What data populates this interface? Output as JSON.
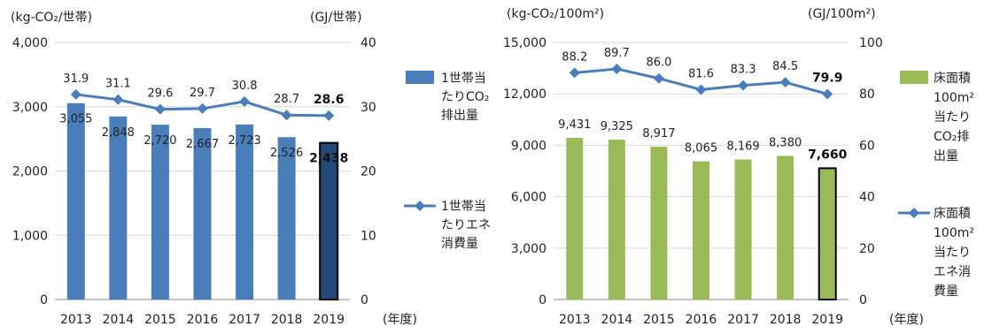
{
  "chart_data": [
    {
      "type": "bar",
      "left_unit": "(kg-CO₂/世帯)",
      "right_unit": "(GJ/世帯)",
      "x_unit": "(年度)",
      "categories": [
        "2013",
        "2014",
        "2015",
        "2016",
        "2017",
        "2018",
        "2019"
      ],
      "ylim": [
        0,
        4000
      ],
      "y_ticks": [
        "0",
        "1,000",
        "2,000",
        "3,000",
        "4,000"
      ],
      "y2lim": [
        0,
        40
      ],
      "y2_ticks": [
        "0",
        "10",
        "20",
        "30",
        "40"
      ],
      "grid": true,
      "legend_position": "right",
      "series": [
        {
          "name_lines": [
            "1世帯当",
            "たりCO₂",
            "排出量"
          ],
          "kind": "bar",
          "axis": "left",
          "color": "#4a7ebb",
          "highlight_color": "#254a7a",
          "values": [
            3055,
            2848,
            2720,
            2667,
            2723,
            2526,
            2438
          ],
          "labels": [
            "3,055",
            "2,848",
            "2,720",
            "2,667",
            "2,723",
            "2,526",
            "2,438"
          ]
        },
        {
          "name_lines": [
            "1世帯当",
            "たりエネ",
            "消費量"
          ],
          "kind": "line",
          "axis": "right",
          "color": "#4a7ebb",
          "values": [
            31.9,
            31.1,
            29.6,
            29.7,
            30.8,
            28.7,
            28.6
          ],
          "labels": [
            "31.9",
            "31.1",
            "29.6",
            "29.7",
            "30.8",
            "28.7",
            "28.6"
          ]
        }
      ]
    },
    {
      "type": "bar",
      "left_unit": "(kg-CO₂/100m²)",
      "right_unit": "(GJ/100m²)",
      "x_unit": "(年度)",
      "categories": [
        "2013",
        "2014",
        "2015",
        "2016",
        "2017",
        "2018",
        "2019"
      ],
      "ylim": [
        0,
        15000
      ],
      "y_ticks": [
        "0",
        "3,000",
        "6,000",
        "9,000",
        "12,000",
        "15,000"
      ],
      "y2lim": [
        0,
        100
      ],
      "y2_ticks": [
        "0",
        "20",
        "40",
        "60",
        "80",
        "100"
      ],
      "grid": true,
      "legend_position": "right",
      "series": [
        {
          "name_lines": [
            "床面積",
            "100m²",
            "当たり",
            "CO₂排",
            "出量"
          ],
          "kind": "bar",
          "axis": "left",
          "color": "#9bbb59",
          "highlight_color": "#9bbb59",
          "values": [
            9431,
            9325,
            8917,
            8065,
            8169,
            8380,
            7660
          ],
          "labels": [
            "9,431",
            "9,325",
            "8,917",
            "8,065",
            "8,169",
            "8,380",
            "7,660"
          ]
        },
        {
          "name_lines": [
            "床面積",
            "100m²",
            "当たり",
            "エネ消",
            "費量"
          ],
          "kind": "line",
          "axis": "right",
          "color": "#4a7ebb",
          "values": [
            88.2,
            89.7,
            86.0,
            81.6,
            83.3,
            84.5,
            79.9
          ],
          "labels": [
            "88.2",
            "89.7",
            "86.0",
            "81.6",
            "83.3",
            "84.5",
            "79.9"
          ]
        }
      ]
    }
  ]
}
